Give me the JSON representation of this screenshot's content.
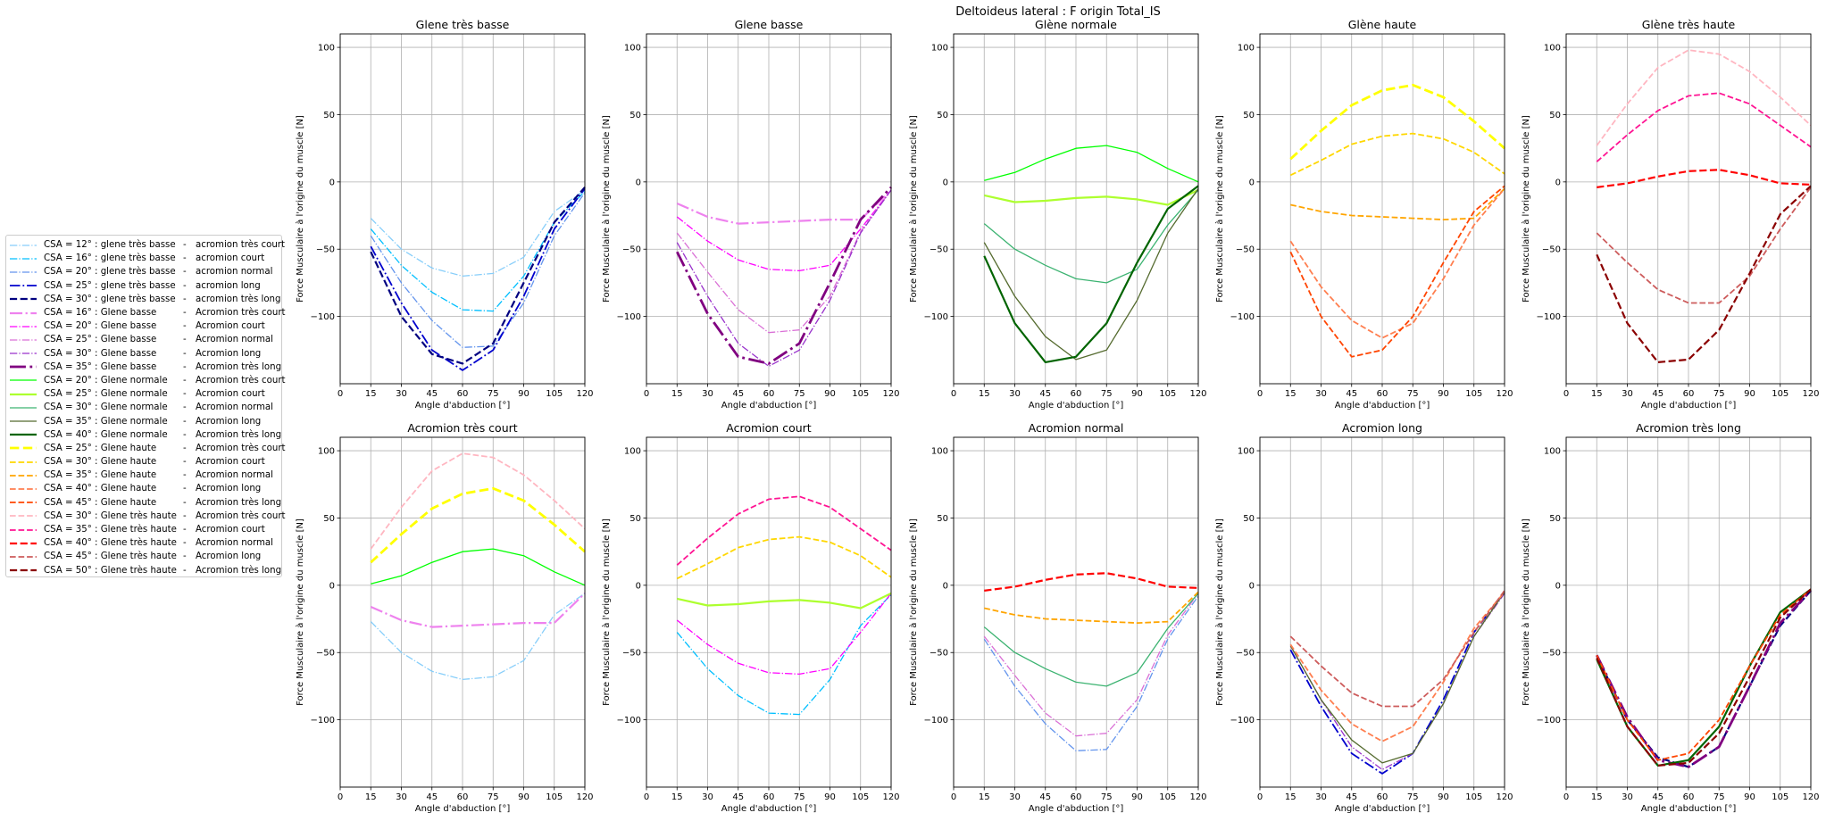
{
  "figure": {
    "suptitle": "Deltoideus lateral : F origin Total_IS"
  },
  "legend": {
    "entries": [
      {
        "series": "s0",
        "a": "CSA = 12° : glene très basse",
        "b": "acromion très court"
      },
      {
        "series": "s1",
        "a": "CSA = 16° : glene très basse",
        "b": "acromion court"
      },
      {
        "series": "s2",
        "a": "CSA = 20° : glene très basse",
        "b": "acromion normal"
      },
      {
        "series": "s3",
        "a": "CSA = 25° : glene très basse",
        "b": "acromion long"
      },
      {
        "series": "s4",
        "a": "CSA = 30° : glene très basse",
        "b": "acromion très long"
      },
      {
        "series": "s5",
        "a": "CSA = 16° : Glene basse",
        "b": "Acromion très court"
      },
      {
        "series": "s6",
        "a": "CSA = 20° : Glene basse",
        "b": "Acromion court"
      },
      {
        "series": "s7",
        "a": "CSA = 25° : Glene basse",
        "b": "Acromion normal"
      },
      {
        "series": "s8",
        "a": "CSA = 30° : Glene basse",
        "b": "Acromion long"
      },
      {
        "series": "s9",
        "a": "CSA = 35° : Glene basse",
        "b": "Acromion très long"
      },
      {
        "series": "s10",
        "a": "CSA = 20° : Glene normale",
        "b": "Acromion très court"
      },
      {
        "series": "s11",
        "a": "CSA = 25° : Glene normale",
        "b": "Acromion court"
      },
      {
        "series": "s12",
        "a": "CSA = 30° : Glene normale",
        "b": "Acromion normal"
      },
      {
        "series": "s13",
        "a": "CSA = 35° : Glene normale",
        "b": "Acromion long"
      },
      {
        "series": "s14",
        "a": "CSA = 40° : Glene normale",
        "b": "Acromion très long"
      },
      {
        "series": "s15",
        "a": "CSA = 25° : Glene haute",
        "b": "Acromion très court"
      },
      {
        "series": "s16",
        "a": "CSA = 30° : Glene haute",
        "b": "Acromion court"
      },
      {
        "series": "s17",
        "a": "CSA = 35° : Glene haute",
        "b": "Acromion normal"
      },
      {
        "series": "s18",
        "a": "CSA = 40° : Glene haute",
        "b": "Acromion long"
      },
      {
        "series": "s19",
        "a": "CSA = 45° : Glene haute",
        "b": "Acromion très long"
      },
      {
        "series": "s20",
        "a": "CSA = 30° : Glene très haute",
        "b": "Acromion très court"
      },
      {
        "series": "s21",
        "a": "CSA = 35° : Glene très haute",
        "b": "Acromion court"
      },
      {
        "series": "s22",
        "a": "CSA = 40° : Glene très haute",
        "b": "Acromion normal"
      },
      {
        "series": "s23",
        "a": "CSA = 45° : Glene très haute",
        "b": "Acromion long"
      },
      {
        "series": "s24",
        "a": "CSA = 50° : Glene très haute",
        "b": "Acromion très long"
      }
    ]
  },
  "chart_data": {
    "type": "line",
    "x": [
      15,
      30,
      45,
      60,
      75,
      90,
      105,
      120
    ],
    "xlim": [
      0,
      120
    ],
    "ylim": [
      -150,
      110
    ],
    "xticks": [
      0,
      15,
      30,
      45,
      60,
      75,
      90,
      105,
      120
    ],
    "yticks": [
      -100,
      -50,
      0,
      50,
      100
    ],
    "xlabel": "Angle d'abduction [°]",
    "ylabel": "Force Musculaire à l'origine du muscle [N]",
    "grid": true,
    "legend_position": "left-outside",
    "series": [
      {
        "id": "s0",
        "name": "CSA = 12° : glene très basse - acromion très court",
        "color": "#87cefa",
        "dash": "dashdot",
        "width": 1.3,
        "values": [
          -27,
          -50,
          -64,
          -70,
          -68,
          -56,
          -22,
          -6
        ]
      },
      {
        "id": "s1",
        "name": "CSA = 16° : glene très basse - acromion court",
        "color": "#00bfff",
        "dash": "dashdot",
        "width": 1.3,
        "values": [
          -35,
          -62,
          -82,
          -95,
          -96,
          -70,
          -30,
          -7
        ]
      },
      {
        "id": "s2",
        "name": "CSA = 20° : glene très basse - acromion normal",
        "color": "#6495ed",
        "dash": "dashdot",
        "width": 1.3,
        "values": [
          -40,
          -75,
          -103,
          -123,
          -122,
          -90,
          -40,
          -8
        ]
      },
      {
        "id": "s3",
        "name": "CSA = 25° : glene très basse - acromion long",
        "color": "#0000cd",
        "dash": "dashdot",
        "width": 1.8,
        "values": [
          -48,
          -90,
          -125,
          -140,
          -125,
          -85,
          -35,
          -5
        ]
      },
      {
        "id": "s4",
        "name": "CSA = 30° : glene très basse - acromion très long",
        "color": "#000080",
        "dash": "dashed",
        "width": 2.2,
        "values": [
          -52,
          -100,
          -128,
          -135,
          -120,
          -75,
          -30,
          -4
        ]
      },
      {
        "id": "s5",
        "name": "CSA = 16° : Glene basse - Acromion très court",
        "color": "#ee82ee",
        "dash": "dashdot",
        "width": 2.2,
        "values": [
          -16,
          -26,
          -31,
          -30,
          -29,
          -28,
          -28,
          -6
        ]
      },
      {
        "id": "s6",
        "name": "CSA = 20° : Glene basse - Acromion court",
        "color": "#ff00ff",
        "dash": "dashdot",
        "width": 1.3,
        "values": [
          -26,
          -44,
          -58,
          -65,
          -66,
          -62,
          -35,
          -6
        ]
      },
      {
        "id": "s7",
        "name": "CSA = 25° : Glene basse - Acromion normal",
        "color": "#da70d6",
        "dash": "dashdot",
        "width": 1.3,
        "values": [
          -38,
          -67,
          -95,
          -112,
          -110,
          -85,
          -37,
          -6
        ]
      },
      {
        "id": "s8",
        "name": "CSA = 30° : Glene basse - Acromion long",
        "color": "#9932cc",
        "dash": "dashdot",
        "width": 1.3,
        "values": [
          -45,
          -85,
          -120,
          -137,
          -125,
          -88,
          -38,
          -6
        ]
      },
      {
        "id": "s9",
        "name": "CSA = 35° : Glene basse - Acromion très long",
        "color": "#800080",
        "dash": "dashdot",
        "width": 2.8,
        "values": [
          -52,
          -98,
          -130,
          -135,
          -120,
          -75,
          -28,
          -4
        ]
      },
      {
        "id": "s10",
        "name": "CSA = 20° : Glene normale - Acromion très court",
        "color": "#00ff00",
        "dash": "solid",
        "width": 1.3,
        "values": [
          1,
          7,
          17,
          25,
          27,
          22,
          10,
          0
        ]
      },
      {
        "id": "s11",
        "name": "CSA = 25° : Glene normale - Acromion court",
        "color": "#adff2f",
        "dash": "solid",
        "width": 2.2,
        "values": [
          -10,
          -15,
          -14,
          -12,
          -11,
          -13,
          -17,
          -6
        ]
      },
      {
        "id": "s12",
        "name": "CSA = 30° : Glene normale - Acromion normal",
        "color": "#3cb371",
        "dash": "solid",
        "width": 1.3,
        "values": [
          -31,
          -50,
          -62,
          -72,
          -75,
          -65,
          -32,
          -6
        ]
      },
      {
        "id": "s13",
        "name": "CSA = 35° : Glene normale - Acromion long",
        "color": "#556b2f",
        "dash": "solid",
        "width": 1.3,
        "values": [
          -45,
          -85,
          -115,
          -132,
          -125,
          -88,
          -38,
          -5
        ]
      },
      {
        "id": "s14",
        "name": "CSA = 40° : Glene normale - Acromion très long",
        "color": "#006400",
        "dash": "solid",
        "width": 2.2,
        "values": [
          -55,
          -105,
          -134,
          -130,
          -105,
          -60,
          -20,
          -3
        ]
      },
      {
        "id": "s15",
        "name": "CSA = 25° : Glene haute - Acromion très court",
        "color": "#ffff00",
        "dash": "dashed",
        "width": 2.8,
        "values": [
          17,
          38,
          57,
          68,
          72,
          63,
          45,
          25
        ]
      },
      {
        "id": "s16",
        "name": "CSA = 30° : Glene haute - Acromion court",
        "color": "#ffd700",
        "dash": "dashed",
        "width": 1.8,
        "values": [
          5,
          16,
          28,
          34,
          36,
          32,
          22,
          6
        ]
      },
      {
        "id": "s17",
        "name": "CSA = 35° : Glene haute - Acromion normal",
        "color": "#ffa500",
        "dash": "dashed",
        "width": 1.8,
        "values": [
          -17,
          -22,
          -25,
          -26,
          -27,
          -28,
          -27,
          -5
        ]
      },
      {
        "id": "s18",
        "name": "CSA = 40° : Glene haute - Acromion long",
        "color": "#ff7f50",
        "dash": "dashed",
        "width": 1.8,
        "values": [
          -44,
          -78,
          -103,
          -116,
          -105,
          -72,
          -32,
          -5
        ]
      },
      {
        "id": "s19",
        "name": "CSA = 45° : Glene haute - Acromion très long",
        "color": "#ff4500",
        "dash": "dashed",
        "width": 1.8,
        "values": [
          -52,
          -100,
          -130,
          -125,
          -100,
          -60,
          -22,
          -3
        ]
      },
      {
        "id": "s20",
        "name": "CSA = 30° : Glene très haute - Acromion très court",
        "color": "#ffb6c1",
        "dash": "dashed",
        "width": 1.8,
        "values": [
          27,
          58,
          85,
          98,
          95,
          82,
          63,
          42
        ]
      },
      {
        "id": "s21",
        "name": "CSA = 35° : Glene très haute - Acromion court",
        "color": "#ff1493",
        "dash": "dashed",
        "width": 1.8,
        "values": [
          15,
          35,
          53,
          64,
          66,
          58,
          42,
          26
        ]
      },
      {
        "id": "s22",
        "name": "CSA = 40° : Glene très haute - Acromion normal",
        "color": "#ff0000",
        "dash": "dashed",
        "width": 2.2,
        "values": [
          -4,
          -1,
          4,
          8,
          9,
          5,
          -1,
          -2
        ]
      },
      {
        "id": "s23",
        "name": "CSA = 45° : Glene très haute - Acromion long",
        "color": "#cd5c5c",
        "dash": "dashed",
        "width": 1.8,
        "values": [
          -38,
          -60,
          -80,
          -90,
          -90,
          -70,
          -35,
          -4
        ]
      },
      {
        "id": "s24",
        "name": "CSA = 50° : Glene très haute - Acromion très long",
        "color": "#8b0000",
        "dash": "dashed",
        "width": 2.2,
        "values": [
          -54,
          -105,
          -134,
          -132,
          -110,
          -68,
          -24,
          -3
        ]
      }
    ],
    "panels": [
      {
        "title": "Glene très basse",
        "series": [
          "s0",
          "s1",
          "s2",
          "s3",
          "s4"
        ]
      },
      {
        "title": "Glene basse",
        "series": [
          "s5",
          "s6",
          "s7",
          "s8",
          "s9"
        ]
      },
      {
        "title": "Glène normale",
        "series": [
          "s10",
          "s11",
          "s12",
          "s13",
          "s14"
        ]
      },
      {
        "title": "Glène haute",
        "series": [
          "s15",
          "s16",
          "s17",
          "s18",
          "s19"
        ]
      },
      {
        "title": "Glène très haute",
        "series": [
          "s20",
          "s21",
          "s22",
          "s23",
          "s24"
        ]
      },
      {
        "title": "Acromion très court",
        "series": [
          "s0",
          "s5",
          "s10",
          "s15",
          "s20"
        ]
      },
      {
        "title": "Acromion court",
        "series": [
          "s1",
          "s6",
          "s11",
          "s16",
          "s21"
        ]
      },
      {
        "title": "Acromion normal",
        "series": [
          "s2",
          "s7",
          "s12",
          "s17",
          "s22"
        ]
      },
      {
        "title": "Acromion long",
        "series": [
          "s3",
          "s8",
          "s13",
          "s18",
          "s23"
        ]
      },
      {
        "title": "Acromion très long",
        "series": [
          "s4",
          "s9",
          "s14",
          "s19",
          "s24"
        ]
      }
    ]
  }
}
